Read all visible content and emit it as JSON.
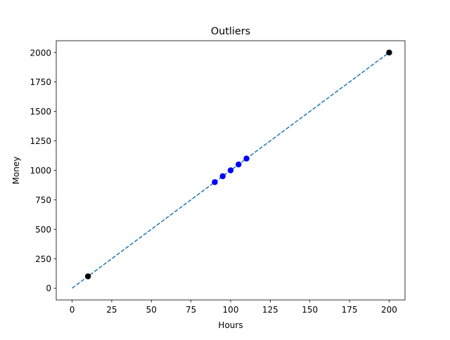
{
  "chart_data": {
    "type": "scatter",
    "title": "Outliers",
    "xlabel": "Hours",
    "ylabel": "Money",
    "xlim": [
      -10,
      210
    ],
    "ylim": [
      -100,
      2100
    ],
    "xticks": [
      0,
      25,
      50,
      75,
      100,
      125,
      150,
      175,
      200
    ],
    "yticks": [
      0,
      250,
      500,
      750,
      1000,
      1250,
      1500,
      1750,
      2000
    ],
    "grid": false,
    "legend": "none",
    "series": [
      {
        "kind": "scatter",
        "color": "#0000ff",
        "x": [
          90,
          95,
          100,
          105,
          110
        ],
        "y": [
          900,
          950,
          1000,
          1050,
          1100
        ]
      },
      {
        "kind": "scatter",
        "color": "#000000",
        "x": [
          10,
          200
        ],
        "y": [
          100,
          2000
        ]
      },
      {
        "kind": "line",
        "style": "dashed",
        "color": "#1f77b4",
        "x": [
          0,
          200
        ],
        "y": [
          0,
          2000
        ]
      }
    ]
  }
}
